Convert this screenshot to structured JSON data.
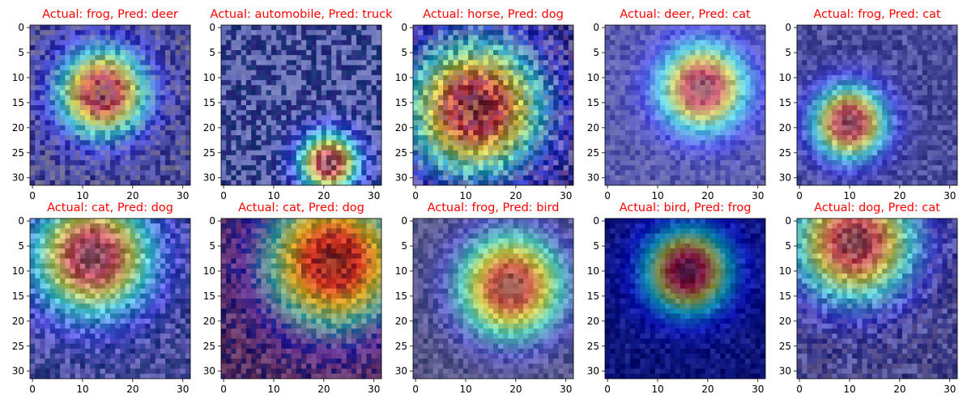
{
  "figure": {
    "title_color": "#ff0000",
    "background": "#ffffff",
    "colormap": "jet",
    "heatmap_blend": "alpha overlay on image"
  },
  "chart_data": [
    {
      "type": "heatmap",
      "title": "Actual: frog, Pred: deer",
      "actual": "frog",
      "pred": "deer",
      "xlim": [
        0,
        31
      ],
      "ylim": [
        31,
        0
      ],
      "xticks": [
        0,
        10,
        20,
        30
      ],
      "yticks": [
        0,
        5,
        10,
        15,
        20,
        25,
        30
      ],
      "grid": false,
      "heat_peak": [
        14,
        13
      ],
      "heat_peak_spread": 6,
      "base_colors": [
        "#8a8fb0",
        "#c8c0a0",
        "#4a4a7a",
        "#a4a6d8"
      ]
    },
    {
      "type": "heatmap",
      "title": "Actual: automobile, Pred: truck",
      "actual": "automobile",
      "pred": "truck",
      "xlim": [
        0,
        31
      ],
      "ylim": [
        31,
        0
      ],
      "xticks": [
        0,
        10,
        20,
        30
      ],
      "yticks": [
        0,
        5,
        10,
        15,
        20,
        25,
        30
      ],
      "grid": false,
      "heat_peak": [
        21,
        27
      ],
      "heat_peak_spread": 4,
      "base_colors": [
        "#b9c9e6",
        "#2f5a6c",
        "#d9e6f0",
        "#4b4b7a"
      ]
    },
    {
      "type": "heatmap",
      "title": "Actual: horse, Pred: dog",
      "actual": "horse",
      "pred": "dog",
      "xlim": [
        0,
        31
      ],
      "ylim": [
        31,
        0
      ],
      "xticks": [
        0,
        10,
        20,
        30
      ],
      "yticks": [
        0,
        5,
        10,
        15,
        20,
        25,
        30
      ],
      "grid": false,
      "heat_peak": [
        12,
        16
      ],
      "heat_peak_spread": 9,
      "base_colors": [
        "#2b2f4a",
        "#d7c9a3",
        "#6d6fae",
        "#a07070"
      ]
    },
    {
      "type": "heatmap",
      "title": "Actual: deer, Pred: cat",
      "actual": "deer",
      "pred": "cat",
      "xlim": [
        0,
        31
      ],
      "ylim": [
        31,
        0
      ],
      "xticks": [
        0,
        10,
        20,
        30
      ],
      "yticks": [
        0,
        5,
        10,
        15,
        20,
        25,
        30
      ],
      "grid": false,
      "heat_peak": [
        19,
        12
      ],
      "heat_peak_spread": 6,
      "base_colors": [
        "#9fa5d6",
        "#b8bde3",
        "#7c7fb8",
        "#c9c8da"
      ]
    },
    {
      "type": "heatmap",
      "title": "Actual: frog, Pred: cat",
      "actual": "frog",
      "pred": "cat",
      "xlim": [
        0,
        31
      ],
      "ylim": [
        31,
        0
      ],
      "xticks": [
        0,
        10,
        20,
        30
      ],
      "yticks": [
        0,
        5,
        10,
        15,
        20,
        25,
        30
      ],
      "grid": false,
      "heat_peak": [
        10,
        19
      ],
      "heat_peak_spread": 5,
      "base_colors": [
        "#8d90bf",
        "#6c7096",
        "#b5b6d5",
        "#5e6087"
      ]
    },
    {
      "type": "heatmap",
      "title": "Actual: cat, Pred: dog",
      "actual": "cat",
      "pred": "dog",
      "xlim": [
        0,
        31
      ],
      "ylim": [
        31,
        0
      ],
      "xticks": [
        0,
        10,
        20,
        30
      ],
      "yticks": [
        0,
        5,
        10,
        15,
        20,
        25,
        30
      ],
      "grid": false,
      "heat_peak": [
        12,
        7
      ],
      "heat_peak_spread": 8,
      "base_colors": [
        "#8b86b8",
        "#3e5468",
        "#c4c2e0",
        "#58748a"
      ]
    },
    {
      "type": "heatmap",
      "title": "Actual: cat, Pred: dog",
      "actual": "cat",
      "pred": "dog",
      "xlim": [
        0,
        31
      ],
      "ylim": [
        31,
        0
      ],
      "xticks": [
        0,
        10,
        20,
        30
      ],
      "yticks": [
        0,
        5,
        10,
        15,
        20,
        25,
        30
      ],
      "grid": false,
      "heat_peak": [
        22,
        8
      ],
      "heat_peak_spread": 9,
      "base_colors": [
        "#7a3e2b",
        "#d27c5a",
        "#3f2a3a",
        "#b95a3f"
      ]
    },
    {
      "type": "heatmap",
      "title": "Actual: frog, Pred: bird",
      "actual": "frog",
      "pred": "bird",
      "xlim": [
        0,
        31
      ],
      "ylim": [
        31,
        0
      ],
      "xticks": [
        0,
        10,
        20,
        30
      ],
      "yticks": [
        0,
        5,
        10,
        15,
        20,
        25,
        30
      ],
      "grid": false,
      "heat_peak": [
        19,
        13
      ],
      "heat_peak_spread": 7,
      "base_colors": [
        "#b5b29a",
        "#8c8a74",
        "#c9c6b0",
        "#6e7a64"
      ]
    },
    {
      "type": "heatmap",
      "title": "Actual: bird, Pred: frog",
      "actual": "bird",
      "pred": "frog",
      "xlim": [
        0,
        31
      ],
      "ylim": [
        31,
        0
      ],
      "xticks": [
        0,
        10,
        20,
        30
      ],
      "yticks": [
        0,
        5,
        10,
        15,
        20,
        25,
        30
      ],
      "grid": false,
      "heat_peak": [
        16,
        10
      ],
      "heat_peak_spread": 6,
      "base_colors": [
        "#0a1450",
        "#1a2a80",
        "#0c1a60",
        "#2a3c90"
      ]
    },
    {
      "type": "heatmap",
      "title": "Actual: dog, Pred: cat",
      "actual": "dog",
      "pred": "cat",
      "xlim": [
        0,
        31
      ],
      "ylim": [
        31,
        0
      ],
      "xticks": [
        0,
        10,
        20,
        30
      ],
      "yticks": [
        0,
        5,
        10,
        15,
        20,
        25,
        30
      ],
      "grid": false,
      "heat_peak": [
        11,
        4
      ],
      "heat_peak_spread": 8,
      "base_colors": [
        "#6a6a8a",
        "#9a8a8a",
        "#4a4a6a",
        "#b8b8c8"
      ]
    }
  ]
}
